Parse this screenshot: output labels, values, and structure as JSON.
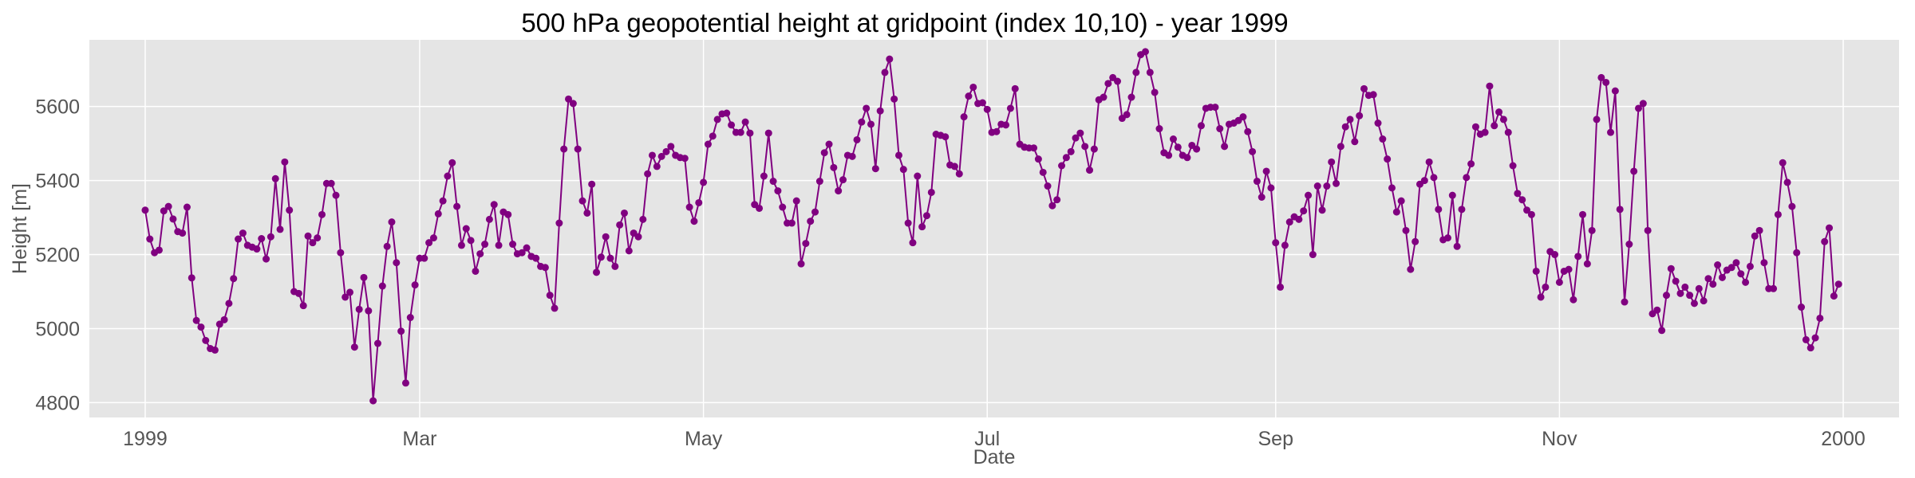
{
  "chart_data": {
    "type": "line",
    "title": "500 hPa geopotential height at gridpoint (index 10,10) - year 1999",
    "xlabel": "Date",
    "ylabel": "Height [m]",
    "x_range": [
      "1998-12-20",
      "2000-01-13"
    ],
    "ylim": [
      4760,
      5780
    ],
    "grid": true,
    "legend": "none",
    "colors": {
      "series": "#800080",
      "plot_background": "#e5e5e5",
      "grid": "#ffffff"
    },
    "x_ticks": [
      {
        "date": "1999-01-01",
        "label": "1999"
      },
      {
        "date": "1999-03-01",
        "label": "Mar"
      },
      {
        "date": "1999-05-01",
        "label": "May"
      },
      {
        "date": "1999-07-01",
        "label": "Jul"
      },
      {
        "date": "1999-09-01",
        "label": "Sep"
      },
      {
        "date": "1999-11-01",
        "label": "Nov"
      },
      {
        "date": "2000-01-01",
        "label": "2000"
      }
    ],
    "y_ticks": [
      4800,
      5000,
      5200,
      5400,
      5600
    ],
    "series": [
      {
        "x_start": "1999-01-01",
        "x_step_days": 1,
        "values": [
          5320,
          5242,
          5205,
          5212,
          5318,
          5330,
          5296,
          5262,
          5258,
          5328,
          5137,
          5022,
          5004,
          4968,
          4946,
          4942,
          5012,
          5024,
          5068,
          5135,
          5242,
          5258,
          5225,
          5220,
          5215,
          5243,
          5188,
          5248,
          5405,
          5268,
          5450,
          5320,
          5100,
          5095,
          5062,
          5250,
          5232,
          5245,
          5308,
          5392,
          5392,
          5360,
          5205,
          5085,
          5098,
          4950,
          5052,
          5138,
          5048,
          4805,
          4960,
          5115,
          5222,
          5288,
          5178,
          4993,
          4853,
          5030,
          5118,
          5190,
          5190,
          5232,
          5245,
          5310,
          5345,
          5412,
          5448,
          5330,
          5225,
          5270,
          5238,
          5155,
          5202,
          5228,
          5295,
          5335,
          5225,
          5315,
          5308,
          5228,
          5202,
          5205,
          5218,
          5195,
          5190,
          5168,
          5165,
          5090,
          5055,
          5285,
          5485,
          5620,
          5608,
          5485,
          5345,
          5312,
          5390,
          5152,
          5193,
          5248,
          5190,
          5168,
          5280,
          5312,
          5210,
          5258,
          5248,
          5295,
          5418,
          5468,
          5438,
          5465,
          5478,
          5492,
          5468,
          5462,
          5460,
          5328,
          5290,
          5340,
          5395,
          5498,
          5520,
          5565,
          5580,
          5582,
          5550,
          5530,
          5530,
          5558,
          5528,
          5335,
          5325,
          5412,
          5528,
          5398,
          5372,
          5328,
          5285,
          5285,
          5345,
          5175,
          5230,
          5290,
          5315,
          5398,
          5475,
          5498,
          5435,
          5372,
          5402,
          5468,
          5465,
          5510,
          5558,
          5595,
          5552,
          5432,
          5588,
          5692,
          5728,
          5620,
          5468,
          5430,
          5285,
          5232,
          5412,
          5275,
          5305,
          5368,
          5525,
          5522,
          5518,
          5442,
          5438,
          5418,
          5572,
          5628,
          5652,
          5608,
          5610,
          5592,
          5530,
          5532,
          5552,
          5550,
          5595,
          5648,
          5498,
          5490,
          5488,
          5488,
          5458,
          5422,
          5385,
          5332,
          5348,
          5440,
          5462,
          5478,
          5515,
          5528,
          5492,
          5428,
          5485,
          5618,
          5625,
          5662,
          5678,
          5668,
          5568,
          5578,
          5625,
          5692,
          5740,
          5748,
          5692,
          5638,
          5540,
          5475,
          5468,
          5512,
          5490,
          5468,
          5462,
          5495,
          5485,
          5548,
          5595,
          5598,
          5598,
          5540,
          5492,
          5552,
          5555,
          5562,
          5572,
          5532,
          5478,
          5398,
          5355,
          5425,
          5380,
          5232,
          5112,
          5225,
          5288,
          5302,
          5295,
          5318,
          5360,
          5200,
          5385,
          5320,
          5385,
          5450,
          5392,
          5492,
          5545,
          5565,
          5505,
          5575,
          5648,
          5630,
          5632,
          5555,
          5512,
          5458,
          5380,
          5315,
          5345,
          5265,
          5160,
          5235,
          5390,
          5400,
          5450,
          5408,
          5322,
          5240,
          5245,
          5360,
          5222,
          5322,
          5408,
          5445,
          5545,
          5525,
          5530,
          5655,
          5548,
          5585,
          5565,
          5530,
          5440,
          5365,
          5348,
          5320,
          5308,
          5155,
          5085,
          5112,
          5208,
          5200,
          5125,
          5155,
          5160,
          5078,
          5195,
          5308,
          5175,
          5265,
          5565,
          5678,
          5665,
          5530,
          5642,
          5322,
          5072,
          5228,
          5425,
          5595,
          5608,
          5265,
          5040,
          5050,
          4995,
          5090,
          5162,
          5128,
          5095,
          5112,
          5090,
          5068,
          5108,
          5075,
          5135,
          5120,
          5172,
          5138,
          5158,
          5165,
          5178,
          5148,
          5125,
          5168,
          5250,
          5265,
          5178,
          5108,
          5108,
          5308,
          5448,
          5395,
          5330,
          5205,
          5058,
          4970,
          4948,
          4975,
          5028,
          5235,
          5272,
          5088,
          5120
        ]
      }
    ]
  }
}
